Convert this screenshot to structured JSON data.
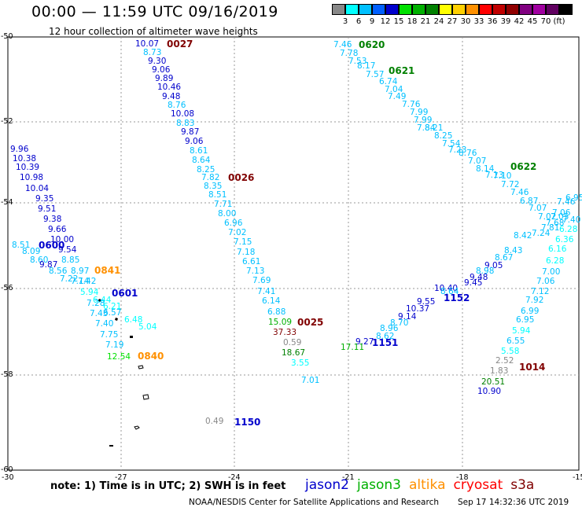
{
  "title": "00:00 — 11:59 UTC 09/16/2019",
  "subtitle": "12 hour collection of altimeter wave heights",
  "scale": {
    "colors": [
      "#888888",
      "#00ffff",
      "#00c0ff",
      "#0060ff",
      "#0000cc",
      "#00e000",
      "#00b000",
      "#008000",
      "#ffff00",
      "#ffd000",
      "#ff9000",
      "#ff0000",
      "#c00000",
      "#900000",
      "#800080",
      "#a000a0",
      "#600060",
      "#000000"
    ],
    "labels": [
      "3",
      "6",
      "9",
      "12",
      "15",
      "18",
      "21",
      "24",
      "27",
      "30",
      "33",
      "36",
      "39",
      "42",
      "45",
      "70",
      "(ft)"
    ]
  },
  "axes": {
    "lon_labels": [
      "-30",
      "-27",
      "-24",
      "-21",
      "-18",
      "-15"
    ],
    "lat_labels": [
      "-50",
      "-52",
      "-54",
      "-56",
      "-58",
      "-60"
    ]
  },
  "tracks": [
    {
      "label": "0027",
      "color": "#800000",
      "points": [
        {
          "v": "10.07",
          "c": "#0000cc"
        },
        {
          "v": "8.73",
          "c": "#00c0ff"
        },
        {
          "v": "9.30",
          "c": "#0000cc"
        },
        {
          "v": "9.06",
          "c": "#0000cc"
        },
        {
          "v": "9.89",
          "c": "#0000cc"
        },
        {
          "v": "10.46",
          "c": "#0000cc"
        },
        {
          "v": "9.48",
          "c": "#0000cc"
        },
        {
          "v": "8.76",
          "c": "#00c0ff"
        },
        {
          "v": "10.08",
          "c": "#0000cc"
        },
        {
          "v": "8.83",
          "c": "#00c0ff"
        },
        {
          "v": "9.87",
          "c": "#0000cc"
        },
        {
          "v": "9.06",
          "c": "#0000cc"
        },
        {
          "v": "8.61",
          "c": "#00c0ff"
        },
        {
          "v": "8.64",
          "c": "#00c0ff"
        },
        {
          "v": "8.25",
          "c": "#00c0ff"
        },
        {
          "v": "7.82",
          "c": "#00c0ff"
        },
        {
          "v": "8.35",
          "c": "#00c0ff"
        },
        {
          "v": "8.51",
          "c": "#00c0ff"
        },
        {
          "v": "7.71",
          "c": "#00c0ff"
        },
        {
          "v": "8.00",
          "c": "#00c0ff"
        },
        {
          "v": "6.96",
          "c": "#00c0ff"
        },
        {
          "v": "7.02",
          "c": "#00c0ff"
        },
        {
          "v": "7.15",
          "c": "#00c0ff"
        },
        {
          "v": "7.18",
          "c": "#00c0ff"
        },
        {
          "v": "6.61",
          "c": "#00c0ff"
        },
        {
          "v": "7.13",
          "c": "#00c0ff"
        },
        {
          "v": "7.69",
          "c": "#00c0ff"
        },
        {
          "v": "7.41",
          "c": "#00c0ff"
        },
        {
          "v": "6.14",
          "c": "#00c0ff"
        },
        {
          "v": "6.88",
          "c": "#00c0ff"
        }
      ]
    },
    {
      "label": "0026",
      "color": "#800000",
      "points": []
    },
    {
      "label": "0025",
      "color": "#800000",
      "points": [
        {
          "v": "15.09",
          "c": "#00b000"
        },
        {
          "v": "37.33",
          "c": "#800000"
        },
        {
          "v": "0.59",
          "c": "#888888"
        },
        {
          "v": "18.67",
          "c": "#008000"
        },
        {
          "v": "3.55",
          "c": "#00ffff"
        },
        {
          "v": "7.01",
          "c": "#00c0ff"
        }
      ]
    },
    {
      "label": "0600",
      "color": "#0000cc",
      "points": [
        {
          "v": "9.96",
          "c": "#0000cc"
        },
        {
          "v": "10.38",
          "c": "#0000cc"
        },
        {
          "v": "10.39",
          "c": "#0000cc"
        },
        {
          "v": "10.98",
          "c": "#0000cc"
        },
        {
          "v": "10.04",
          "c": "#0000cc"
        },
        {
          "v": "9.35",
          "c": "#0000cc"
        },
        {
          "v": "9.51",
          "c": "#0000cc"
        },
        {
          "v": "9.38",
          "c": "#0000cc"
        },
        {
          "v": "9.66",
          "c": "#0000cc"
        },
        {
          "v": "10.00",
          "c": "#0000cc"
        },
        {
          "v": "8.51",
          "c": "#00c0ff"
        },
        {
          "v": "9.54",
          "c": "#0000cc"
        },
        {
          "v": "8.09",
          "c": "#00c0ff"
        },
        {
          "v": "8.60",
          "c": "#00c0ff"
        },
        {
          "v": "8.85",
          "c": "#00c0ff"
        },
        {
          "v": "9.87",
          "c": "#0000cc"
        },
        {
          "v": "8.56",
          "c": "#00c0ff"
        },
        {
          "v": "8.97",
          "c": "#00c0ff"
        },
        {
          "v": "7.22",
          "c": "#00c0ff"
        },
        {
          "v": "7.14",
          "c": "#00c0ff"
        },
        {
          "v": "7.42",
          "c": "#00c0ff"
        }
      ]
    },
    {
      "label": "0841",
      "color": "#ff9000",
      "points": []
    },
    {
      "label": "0601",
      "color": "#0000cc",
      "points": [
        {
          "v": "5.94",
          "c": "#00ffff"
        },
        {
          "v": "6.44",
          "c": "#00ffff"
        },
        {
          "v": "7.28",
          "c": "#00c0ff"
        },
        {
          "v": "6.21",
          "c": "#00ffff"
        },
        {
          "v": "6.57",
          "c": "#00c0ff"
        },
        {
          "v": "7.43",
          "c": "#00c0ff"
        },
        {
          "v": "6.48",
          "c": "#00ffff"
        },
        {
          "v": "7.40",
          "c": "#00c0ff"
        },
        {
          "v": "5.04",
          "c": "#00ffff"
        },
        {
          "v": "7.75",
          "c": "#00c0ff"
        },
        {
          "v": "7.19",
          "c": "#00c0ff"
        },
        {
          "v": "12.54",
          "c": "#00e000"
        }
      ]
    },
    {
      "label": "0840",
      "color": "#ff9000",
      "points": []
    },
    {
      "label": "1150",
      "color": "#0000cc",
      "points": [
        {
          "v": "0.49",
          "c": "#888888"
        }
      ]
    },
    {
      "label": "0620",
      "color": "#008000",
      "points": [
        {
          "v": "7.46",
          "c": "#00c0ff"
        },
        {
          "v": "7.78",
          "c": "#00c0ff"
        },
        {
          "v": "7.53",
          "c": "#00c0ff"
        },
        {
          "v": "8.17",
          "c": "#00c0ff"
        },
        {
          "v": "7.57",
          "c": "#00c0ff"
        }
      ]
    },
    {
      "label": "0621",
      "color": "#008000",
      "points": [
        {
          "v": "6.74",
          "c": "#00c0ff"
        },
        {
          "v": "7.04",
          "c": "#00c0ff"
        },
        {
          "v": "7.49",
          "c": "#00c0ff"
        },
        {
          "v": "7.76",
          "c": "#00c0ff"
        },
        {
          "v": "7.99",
          "c": "#00c0ff"
        },
        {
          "v": "7.99",
          "c": "#00c0ff"
        },
        {
          "v": "7.84",
          "c": "#00c0ff"
        },
        {
          "v": "8.21",
          "c": "#00c0ff"
        },
        {
          "v": "8.25",
          "c": "#00c0ff"
        },
        {
          "v": "7.54",
          "c": "#00c0ff"
        },
        {
          "v": "7.23",
          "c": "#00c0ff"
        },
        {
          "v": "8.76",
          "c": "#00c0ff"
        },
        {
          "v": "7.07",
          "c": "#00c0ff"
        },
        {
          "v": "8.14",
          "c": "#00c0ff"
        },
        {
          "v": "7.13",
          "c": "#00c0ff"
        }
      ]
    },
    {
      "label": "0622",
      "color": "#008000",
      "points": [
        {
          "v": "7.10",
          "c": "#00c0ff"
        },
        {
          "v": "7.72",
          "c": "#00c0ff"
        },
        {
          "v": "7.46",
          "c": "#00c0ff"
        },
        {
          "v": "6.87",
          "c": "#00c0ff"
        },
        {
          "v": "7.07",
          "c": "#00c0ff"
        },
        {
          "v": "7.02",
          "c": "#00c0ff"
        },
        {
          "v": "7.68",
          "c": "#00c0ff"
        },
        {
          "v": "7.06",
          "c": "#00c0ff"
        },
        {
          "v": "7.81",
          "c": "#00c0ff"
        },
        {
          "v": "7.46",
          "c": "#00c0ff"
        },
        {
          "v": "7.24",
          "c": "#00c0ff"
        },
        {
          "v": "6.95",
          "c": "#00c0ff"
        },
        {
          "v": "7.05",
          "c": "#00c0ff"
        },
        {
          "v": "7.40",
          "c": "#00c0ff"
        },
        {
          "v": "6.28",
          "c": "#00ffff"
        },
        {
          "v": "6.36",
          "c": "#00ffff"
        },
        {
          "v": "6.16",
          "c": "#00ffff"
        },
        {
          "v": "6.28",
          "c": "#00ffff"
        }
      ]
    },
    {
      "label": "1152",
      "color": "#0000cc",
      "points": [
        {
          "v": "8.42",
          "c": "#00c0ff"
        },
        {
          "v": "8.43",
          "c": "#00c0ff"
        },
        {
          "v": "8.67",
          "c": "#00c0ff"
        },
        {
          "v": "9.05",
          "c": "#0000cc"
        },
        {
          "v": "8.98",
          "c": "#00c0ff"
        },
        {
          "v": "9.48",
          "c": "#0000cc"
        },
        {
          "v": "9.45",
          "c": "#0000cc"
        },
        {
          "v": "10.40",
          "c": "#0000cc"
        },
        {
          "v": "8.64",
          "c": "#00c0ff"
        },
        {
          "v": "9.55",
          "c": "#0000cc"
        },
        {
          "v": "10.37",
          "c": "#0000cc"
        },
        {
          "v": "9.14",
          "c": "#0000cc"
        },
        {
          "v": "8.70",
          "c": "#00c0ff"
        },
        {
          "v": "8.96",
          "c": "#00c0ff"
        },
        {
          "v": "8.62",
          "c": "#00c0ff"
        },
        {
          "v": "9.27",
          "c": "#0000cc"
        }
      ]
    },
    {
      "label": "1151",
      "color": "#0000cc",
      "points": [
        {
          "v": "17.11",
          "c": "#00b000"
        }
      ]
    },
    {
      "label": "1014",
      "color": "#800000",
      "points": [
        {
          "v": "7.00",
          "c": "#00c0ff"
        },
        {
          "v": "7.06",
          "c": "#00c0ff"
        },
        {
          "v": "7.12",
          "c": "#00c0ff"
        },
        {
          "v": "7.92",
          "c": "#00c0ff"
        },
        {
          "v": "6.99",
          "c": "#00c0ff"
        },
        {
          "v": "6.95",
          "c": "#00c0ff"
        },
        {
          "v": "5.94",
          "c": "#00ffff"
        },
        {
          "v": "6.55",
          "c": "#00c0ff"
        },
        {
          "v": "5.58",
          "c": "#00ffff"
        },
        {
          "v": "2.52",
          "c": "#888888"
        },
        {
          "v": "1.83",
          "c": "#888888"
        },
        {
          "v": "20.51",
          "c": "#008000"
        },
        {
          "v": "10.90",
          "c": "#0000cc"
        }
      ]
    }
  ],
  "note": "note: 1) Time is in UTC; 2) SWH is in feet",
  "legend": [
    {
      "name": "jason2",
      "color": "#0000cc"
    },
    {
      "name": "jason3",
      "color": "#00b000"
    },
    {
      "name": "altika",
      "color": "#ff9000"
    },
    {
      "name": "cryosat",
      "color": "#ff0000"
    },
    {
      "name": "s3a",
      "color": "#800000"
    }
  ],
  "credit": "NOAA/NESDIS Center for Satellite Applications and Research",
  "timestamp": "Sep 17 14:32:36 UTC 2019"
}
